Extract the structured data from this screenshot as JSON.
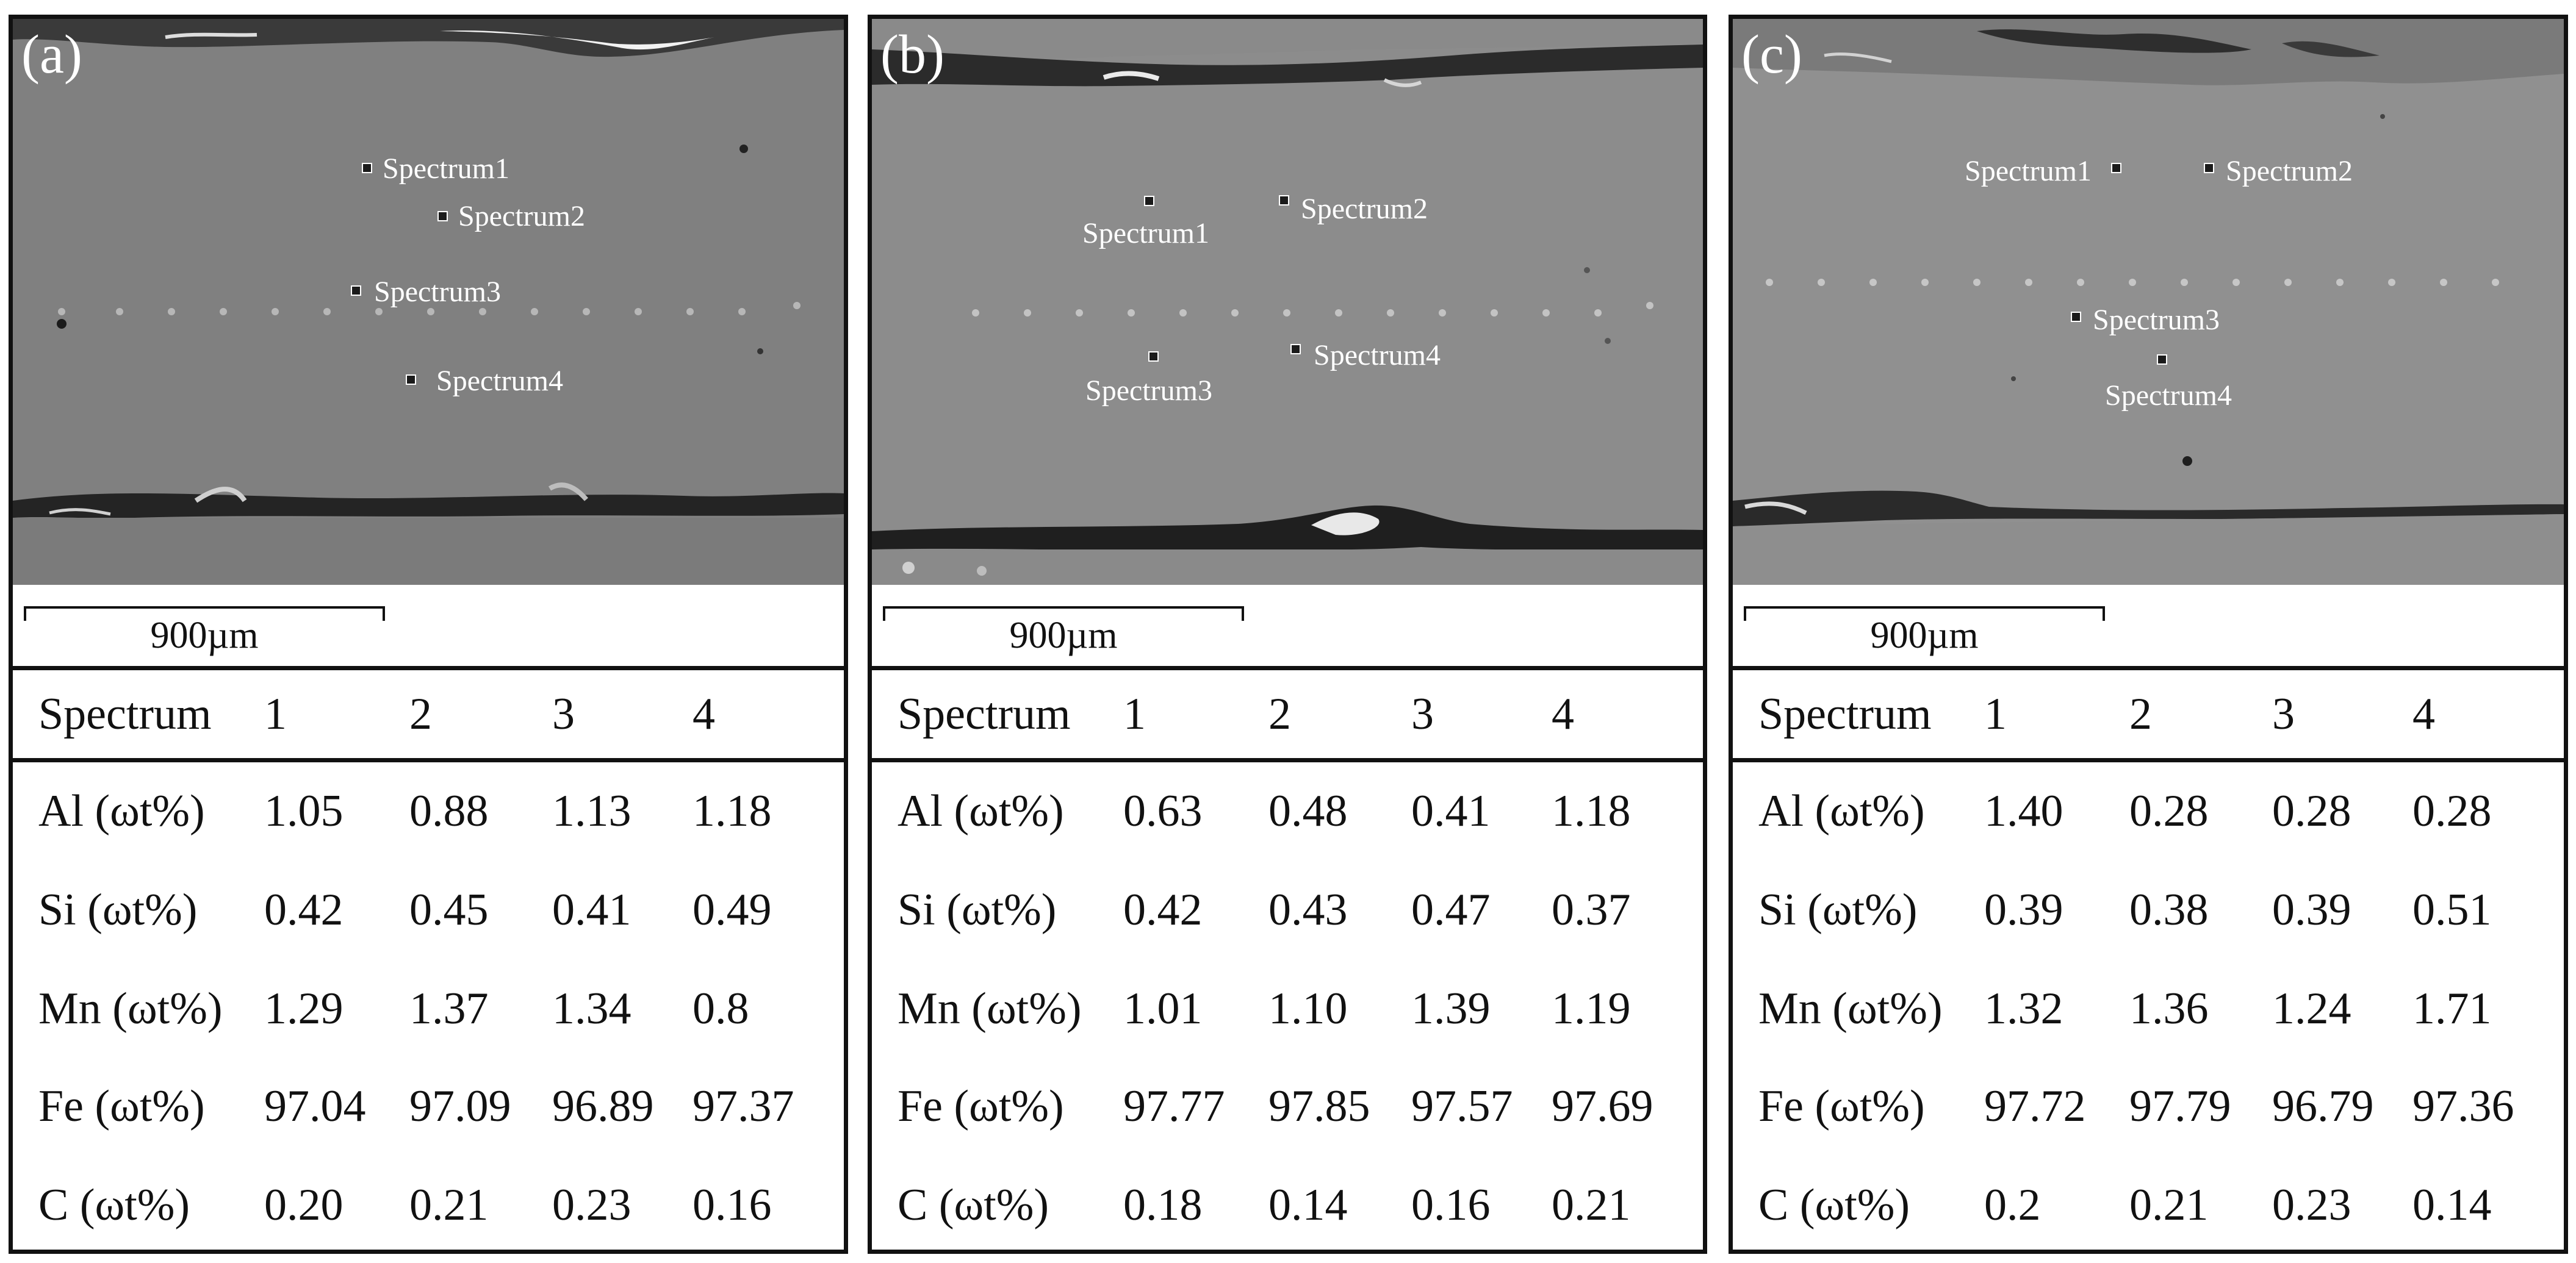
{
  "panels": [
    {
      "label": "(a)",
      "spectra_labels": [
        "Spectrum1",
        "Spectrum2",
        "Spectrum3",
        "Spectrum4"
      ],
      "scale_bar": "900µm",
      "table": {
        "header": [
          "Spectrum",
          "1",
          "2",
          "3",
          "4"
        ],
        "rows": [
          {
            "element": "Al (ωt%)",
            "values": [
              "1.05",
              "0.88",
              "1.13",
              "1.18"
            ]
          },
          {
            "element": "Si (ωt%)",
            "values": [
              "0.42",
              "0.45",
              "0.41",
              "0.49"
            ]
          },
          {
            "element": "Mn (ωt%)",
            "values": [
              "1.29",
              "1.37",
              "1.34",
              "0.8"
            ]
          },
          {
            "element": "Fe (ωt%)",
            "values": [
              "97.04",
              "97.09",
              "96.89",
              "97.37"
            ]
          },
          {
            "element": "C (ωt%)",
            "values": [
              "0.20",
              "0.21",
              "0.23",
              "0.16"
            ]
          }
        ]
      }
    },
    {
      "label": "(b)",
      "spectra_labels": [
        "Spectrum1",
        "Spectrum2",
        "Spectrum3",
        "Spectrum4"
      ],
      "scale_bar": "900µm",
      "table": {
        "header": [
          "Spectrum",
          "1",
          "2",
          "3",
          "4"
        ],
        "rows": [
          {
            "element": "Al (ωt%)",
            "values": [
              "0.63",
              "0.48",
              "0.41",
              "1.18"
            ]
          },
          {
            "element": "Si (ωt%)",
            "values": [
              "0.42",
              "0.43",
              "0.47",
              "0.37"
            ]
          },
          {
            "element": "Mn (ωt%)",
            "values": [
              "1.01",
              "1.10",
              "1.39",
              "1.19"
            ]
          },
          {
            "element": "Fe (ωt%)",
            "values": [
              "97.77",
              "97.85",
              "97.57",
              "97.69"
            ]
          },
          {
            "element": "C (ωt%)",
            "values": [
              "0.18",
              "0.14",
              "0.16",
              "0.21"
            ]
          }
        ]
      }
    },
    {
      "label": "(c)",
      "spectra_labels": [
        "Spectrum1",
        "Spectrum2",
        "Spectrum3",
        "Spectrum4"
      ],
      "scale_bar": "900µm",
      "table": {
        "header": [
          "Spectrum",
          "1",
          "2",
          "3",
          "4"
        ],
        "rows": [
          {
            "element": "Al (ωt%)",
            "values": [
              "1.40",
              "0.28",
              "0.28",
              "0.28"
            ]
          },
          {
            "element": "Si (ωt%)",
            "values": [
              "0.39",
              "0.38",
              "0.39",
              "0.51"
            ]
          },
          {
            "element": "Mn (ωt%)",
            "values": [
              "1.32",
              "1.36",
              "1.24",
              "1.71"
            ]
          },
          {
            "element": "Fe (ωt%)",
            "values": [
              "97.72",
              "97.79",
              "96.79",
              "97.36"
            ]
          },
          {
            "element": "C (ωt%)",
            "values": [
              "0.2",
              "0.21",
              "0.23",
              "0.14"
            ]
          }
        ]
      }
    }
  ],
  "colors": {
    "micrograph_background": "#808080",
    "weld_band_dark": "#2a2a2a",
    "border": "#111111"
  }
}
